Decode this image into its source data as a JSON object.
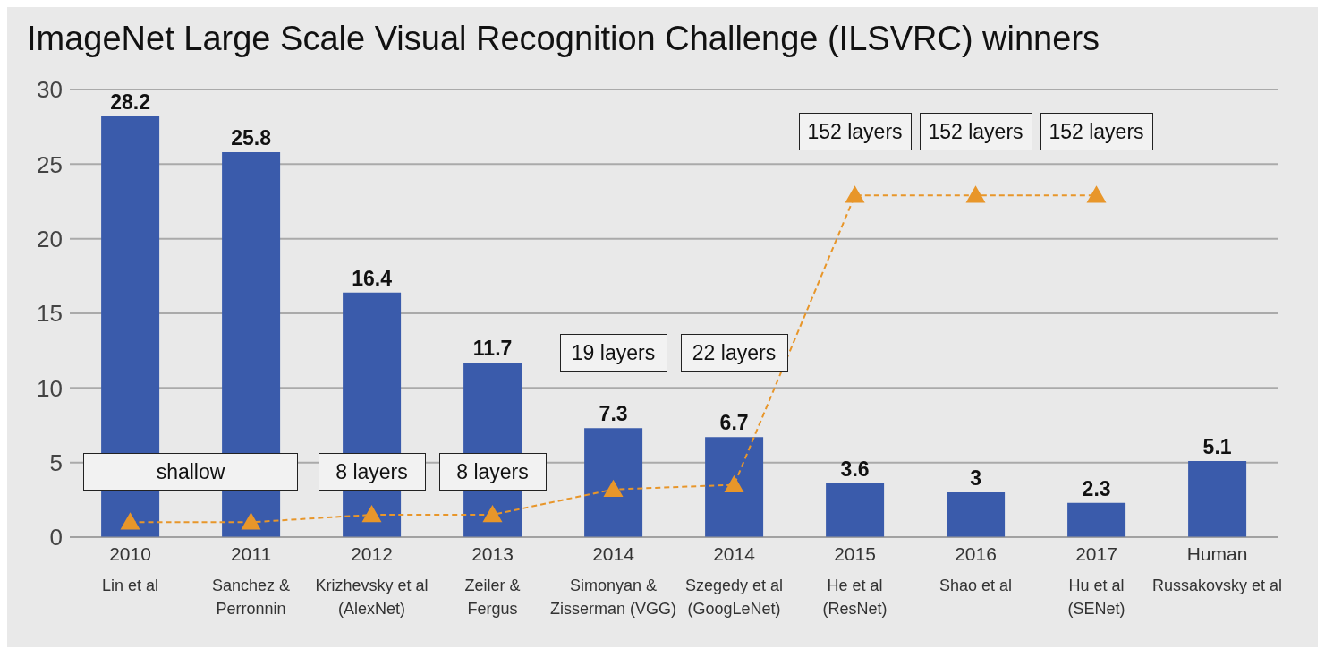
{
  "chart_data": {
    "type": "bar",
    "title": "ImageNet Large Scale Visual Recognition Challenge (ILSVRC) winners",
    "categories": [
      "2010\nLin et al",
      "2011\nSanchez &\nPerronnin",
      "2012\nKrizhevsky et al\n(AlexNet)",
      "2013\nZeiler &\nFergus",
      "2014\nSimonyan &\nZisserman (VGG)",
      "2014\nSzegedy et al\n(GoogLeNet)",
      "2015\nHe et al\n(ResNet)",
      "2016\nShao et al",
      "2017\nHu et al\n(SENet)",
      "Human\nRussakovsky et al"
    ],
    "series": [
      {
        "color": "#3a5bab",
        "values": [
          28.2,
          25.8,
          16.4,
          11.7,
          7.3,
          6.7,
          3.6,
          3,
          2.3,
          5.1
        ],
        "value_labels": [
          "28.2",
          "25.8",
          "16.4",
          "11.7",
          "7.3",
          "6.7",
          "3.6",
          "3",
          "2.3",
          "5.1"
        ]
      },
      {
        "type": "line",
        "color": "#e8962a",
        "marker": "triangle",
        "line_style": "dashed",
        "values": [
          1.0,
          1.0,
          1.5,
          1.5,
          3.2,
          3.5,
          22.9,
          22.9,
          22.9,
          null
        ]
      }
    ],
    "ylim": [
      0,
      30
    ],
    "yticks": [
      0,
      5,
      10,
      15,
      20,
      25,
      30
    ],
    "grid": "y",
    "legend": false,
    "annotations": [
      "shallow",
      "8 layers",
      "8 layers",
      "19 layers",
      "22 layers",
      "152 layers",
      "152 layers",
      "152 layers"
    ]
  }
}
